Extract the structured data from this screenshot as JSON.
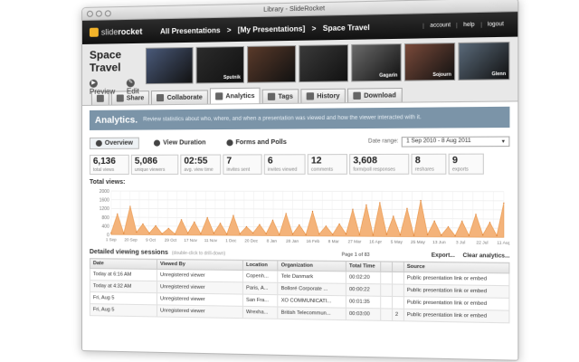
{
  "window": {
    "title": "Library - SlideRocket"
  },
  "brand": {
    "logo_slide": "slide",
    "logo_rocket": "rocket",
    "accent": "#f2b32a"
  },
  "breadcrumb": {
    "items": [
      "All Presentations",
      ">",
      "[My Presentations]",
      ">",
      "Space Travel"
    ]
  },
  "top_links": [
    "account",
    "help",
    "logout"
  ],
  "presentation": {
    "title": "Space Travel",
    "preview_label": "Preview",
    "edit_label": "Edit"
  },
  "thumbnails": [
    {
      "label": "",
      "color": "#4a5a7a"
    },
    {
      "label": "Sputnik",
      "color": "#2b2b2b"
    },
    {
      "label": "",
      "color": "#5a3a2a"
    },
    {
      "label": "",
      "color": "#3a3a3a"
    },
    {
      "label": "Gagarin",
      "color": "#6a6a6a"
    },
    {
      "label": "Sojourn",
      "color": "#7a4a3a"
    },
    {
      "label": "Glenn",
      "color": "#5a6a7a"
    }
  ],
  "tabs": [
    {
      "label": ""
    },
    {
      "label": "Share"
    },
    {
      "label": "Collaborate"
    },
    {
      "label": "Analytics"
    },
    {
      "label": "Tags"
    },
    {
      "label": "History"
    },
    {
      "label": "Download"
    }
  ],
  "banner": {
    "title": "Analytics.",
    "text": "Review statistics about who, where, and when a presentation was viewed and how the viewer interacted with it."
  },
  "subtabs": [
    "Overview",
    "View Duration",
    "Forms and Polls"
  ],
  "date_range": {
    "label": "Date range:",
    "value": "1 Sep 2010 - 8 Aug 2011"
  },
  "stats": [
    {
      "value": "6,136",
      "label": "total views"
    },
    {
      "value": "5,086",
      "label": "unique viewers"
    },
    {
      "value": "02:55",
      "label": "avg. view time"
    },
    {
      "value": "7",
      "label": "invites sent"
    },
    {
      "value": "6",
      "label": "invites viewed"
    },
    {
      "value": "12",
      "label": "comments"
    },
    {
      "value": "3,608",
      "label": "form/poll responses"
    },
    {
      "value": "8",
      "label": "reshares"
    },
    {
      "value": "9",
      "label": "exports"
    }
  ],
  "chart_label": "Total views:",
  "chart_data": {
    "type": "area",
    "title": "Total views:",
    "ylim": [
      0,
      2000
    ],
    "yticks": [
      "2000",
      "1600",
      "1200",
      "800",
      "400",
      "0"
    ],
    "x_tick_labels": [
      "1 Sep",
      "20 Sep",
      "9 Oct",
      "29 Oct",
      "17 Nov",
      "11 Nov",
      "1 Dec",
      "20 Dec",
      "8 Jan",
      "28 Jan",
      "16 Feb",
      "8 Mar",
      "27 Mar",
      "16 Apr",
      "5 May",
      "25 May",
      "13 Jun",
      "3 Jul",
      "22 Jul",
      "11 Aug"
    ],
    "values": [
      80,
      950,
      60,
      1300,
      120,
      500,
      80,
      420,
      60,
      300,
      50,
      700,
      90,
      600,
      70,
      800,
      100,
      550,
      60,
      900,
      80,
      400,
      120,
      500,
      90,
      700,
      60,
      1000,
      80,
      500,
      60,
      1100,
      90,
      450,
      80,
      550,
      100,
      1200,
      80,
      1400,
      60,
      1500,
      100,
      900,
      80,
      1250,
      60,
      1600,
      100,
      700,
      80,
      450,
      60,
      700,
      80,
      1000,
      100,
      650,
      80,
      1500
    ]
  },
  "sessions": {
    "title": "Detailed viewing sessions",
    "hint": "(double-click to drill-down)",
    "pager": "Page 1 of 83",
    "export_label": "Export...",
    "clear_label": "Clear analytics...",
    "columns": [
      "Date",
      "Viewed By",
      "Location",
      "Organization",
      "Total Time",
      "",
      "",
      "Source"
    ],
    "rows": [
      [
        "Today at 6:16 AM",
        "Unregistered viewer",
        "Copenh...",
        "Tele Danmark",
        "00:02:20",
        "",
        "",
        "Public presentation link or embed"
      ],
      [
        "Today at 4:32 AM",
        "Unregistered viewer",
        "Paris, A...",
        "Bolloré Corporate ...",
        "00:00:22",
        "",
        "",
        "Public presentation link or embed"
      ],
      [
        "Fri, Aug 5",
        "Unregistered viewer",
        "San Fra...",
        "XO COMMUNICATI...",
        "00:01:35",
        "",
        "",
        "Public presentation link or embed"
      ],
      [
        "Fri, Aug 5",
        "Unregistered viewer",
        "Wrexha...",
        "British Telecommun...",
        "00:03:00",
        "",
        "2",
        "Public presentation link or embed"
      ]
    ]
  }
}
